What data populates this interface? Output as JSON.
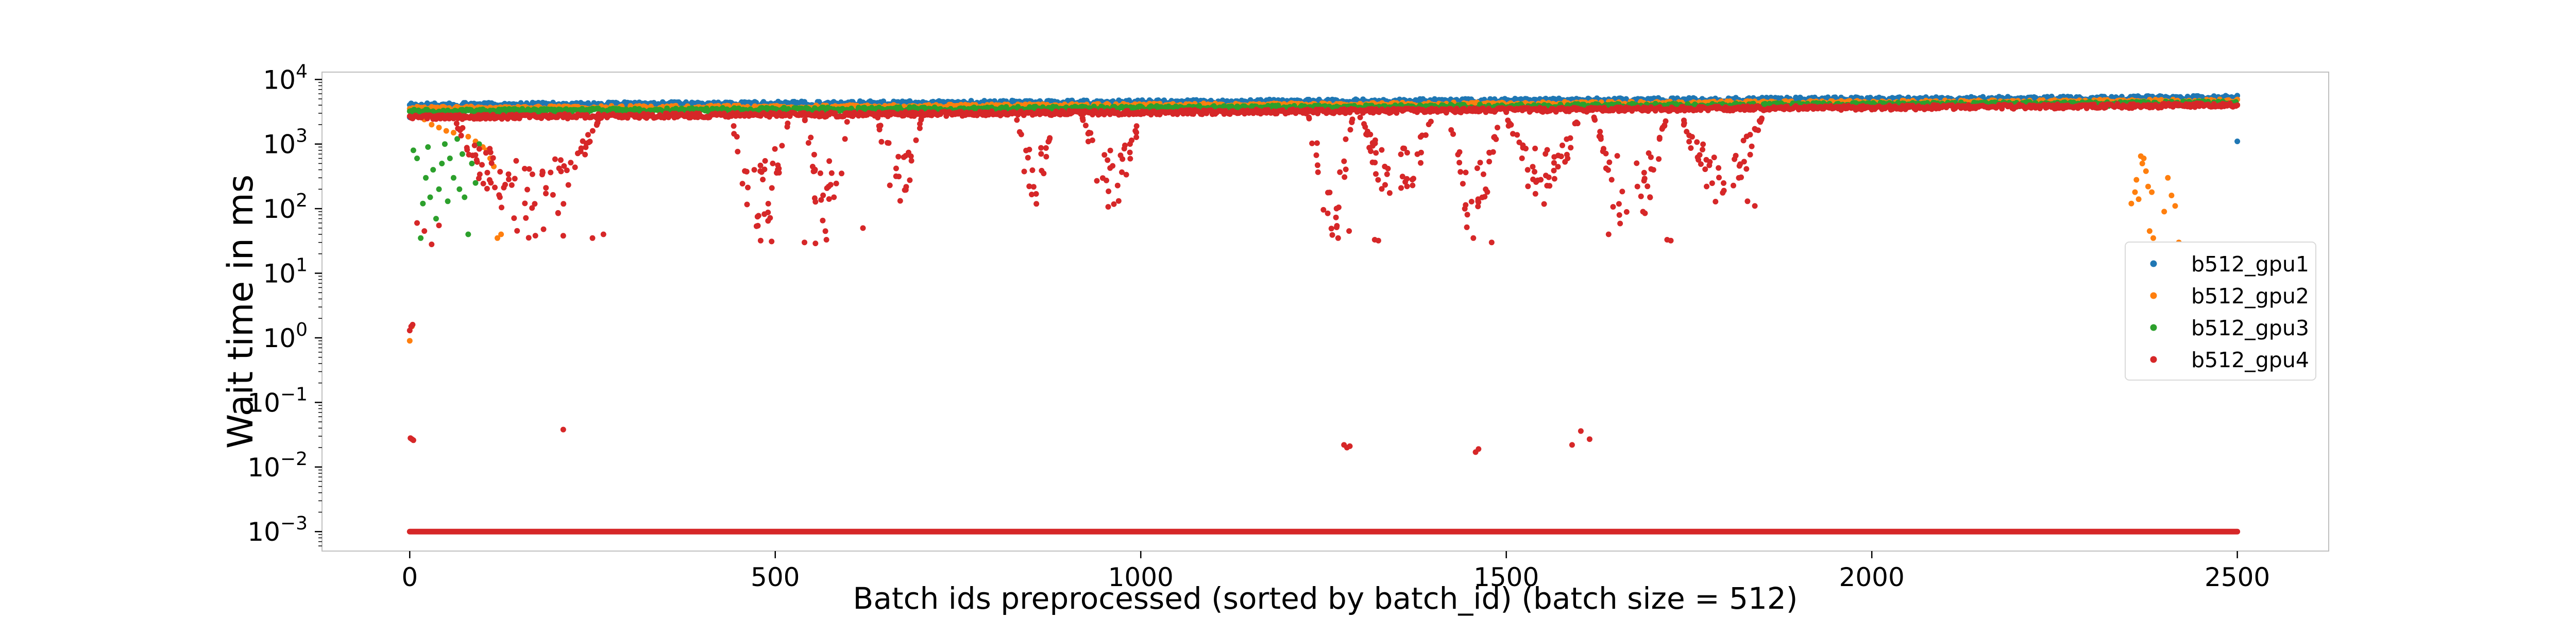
{
  "chart_data": {
    "type": "scatter",
    "xlabel": "Batch ids preprocessed (sorted by batch_id) (batch size = 512)",
    "ylabel": "Wait time in ms",
    "yscale": "log",
    "xlim": [
      -120,
      2625
    ],
    "ylim": [
      0.0005,
      13000
    ],
    "x_ticks": [
      0,
      500,
      1000,
      1500,
      2000,
      2500
    ],
    "x_tick_labels": [
      "0",
      "500",
      "1000",
      "1500",
      "2000",
      "2500"
    ],
    "y_ticks": [
      0.001,
      0.01,
      0.1,
      1,
      10,
      100,
      1000,
      10000
    ],
    "y_tick_labels": [
      {
        "base": "10",
        "exp": "−3"
      },
      {
        "base": "10",
        "exp": "−2"
      },
      {
        "base": "10",
        "exp": "−1"
      },
      {
        "base": "10",
        "exp": "0"
      },
      {
        "base": "10",
        "exp": "1"
      },
      {
        "base": "10",
        "exp": "2"
      },
      {
        "base": "10",
        "exp": "3"
      },
      {
        "base": "10",
        "exp": "4"
      }
    ],
    "grid": false,
    "legend_position": "center-right",
    "series": [
      {
        "name": "b512_gpu1",
        "color": "#1f77b4",
        "baseline": {
          "x_start": 0,
          "x_end": 2500,
          "y_start": 4000,
          "y_end": 5200
        },
        "points": [
          [
            0,
            2600
          ],
          [
            2,
            3300
          ],
          [
            2500,
            1100
          ]
        ]
      },
      {
        "name": "b512_gpu2",
        "color": "#ff7f0e",
        "baseline": {
          "x_start": 0,
          "x_end": 2500,
          "y_start": 3500,
          "y_end": 4600
        },
        "points": [
          [
            0,
            0.9
          ],
          [
            3,
            1.5
          ],
          [
            10,
            3000
          ],
          [
            20,
            2400
          ],
          [
            30,
            2000
          ],
          [
            40,
            1800
          ],
          [
            50,
            1600
          ],
          [
            60,
            1500
          ],
          [
            70,
            1700
          ],
          [
            80,
            1300
          ],
          [
            90,
            1100
          ],
          [
            100,
            900
          ],
          [
            105,
            800
          ],
          [
            110,
            600
          ],
          [
            115,
            450
          ],
          [
            120,
            35
          ],
          [
            125,
            40
          ],
          [
            2355,
            120
          ],
          [
            2360,
            180
          ],
          [
            2362,
            280
          ],
          [
            2365,
            140
          ],
          [
            2368,
            650
          ],
          [
            2370,
            500
          ],
          [
            2372,
            600
          ],
          [
            2375,
            380
          ],
          [
            2378,
            220
          ],
          [
            2380,
            45
          ],
          [
            2383,
            180
          ],
          [
            2385,
            35
          ],
          [
            2400,
            90
          ],
          [
            2405,
            300
          ],
          [
            2410,
            160
          ],
          [
            2415,
            110
          ],
          [
            2420,
            30
          ]
        ]
      },
      {
        "name": "b512_gpu3",
        "color": "#2ca02c",
        "baseline": {
          "x_start": 0,
          "x_end": 2500,
          "y_start": 3200,
          "y_end": 4300
        },
        "points": [
          [
            5,
            800
          ],
          [
            10,
            600
          ],
          [
            15,
            35
          ],
          [
            18,
            120
          ],
          [
            22,
            300
          ],
          [
            25,
            900
          ],
          [
            28,
            150
          ],
          [
            32,
            400
          ],
          [
            36,
            70
          ],
          [
            40,
            200
          ],
          [
            44,
            500
          ],
          [
            48,
            1000
          ],
          [
            52,
            130
          ],
          [
            55,
            600
          ],
          [
            60,
            300
          ],
          [
            65,
            1200
          ],
          [
            68,
            200
          ],
          [
            72,
            700
          ],
          [
            75,
            150
          ],
          [
            80,
            40
          ],
          [
            85,
            500
          ],
          [
            90,
            250
          ],
          [
            95,
            1000
          ]
        ]
      },
      {
        "name": "b512_gpu4",
        "color": "#d62728",
        "baseline": {
          "x_start": 0,
          "x_end": 2500,
          "y_start": 2600,
          "y_end": 4000
        },
        "floor": {
          "x_start": 0,
          "x_end": 2500,
          "y": 0.001
        },
        "dip_clusters": [
          {
            "x_start": 60,
            "x_end": 260,
            "y_low": 30
          },
          {
            "x_start": 440,
            "x_end": 520,
            "y_low": 30
          },
          {
            "x_start": 540,
            "x_end": 600,
            "y_low": 30
          },
          {
            "x_start": 640,
            "x_end": 700,
            "y_low": 80
          },
          {
            "x_start": 830,
            "x_end": 880,
            "y_low": 100
          },
          {
            "x_start": 920,
            "x_end": 1000,
            "y_low": 100
          },
          {
            "x_start": 1230,
            "x_end": 1290,
            "y_low": 30
          },
          {
            "x_start": 1300,
            "x_end": 1400,
            "y_low": 100
          },
          {
            "x_start": 1420,
            "x_end": 1490,
            "y_low": 30
          },
          {
            "x_start": 1500,
            "x_end": 1600,
            "y_low": 100
          },
          {
            "x_start": 1620,
            "x_end": 1720,
            "y_low": 30
          },
          {
            "x_start": 1740,
            "x_end": 1850,
            "y_low": 100
          }
        ],
        "points": [
          [
            0,
            1.3
          ],
          [
            2,
            1.5
          ],
          [
            4,
            1.6
          ],
          [
            1,
            0.028
          ],
          [
            3,
            0.027
          ],
          [
            5,
            0.026
          ],
          [
            210,
            0.038
          ],
          [
            1278,
            0.022
          ],
          [
            1282,
            0.02
          ],
          [
            1286,
            0.021
          ],
          [
            1458,
            0.017
          ],
          [
            1462,
            0.019
          ],
          [
            1590,
            0.022
          ],
          [
            1602,
            0.036
          ],
          [
            1614,
            0.027
          ],
          [
            10,
            60
          ],
          [
            20,
            45
          ],
          [
            30,
            28
          ],
          [
            40,
            55
          ],
          [
            210,
            38
          ],
          [
            250,
            35
          ],
          [
            265,
            40
          ],
          [
            480,
            32
          ],
          [
            495,
            31
          ],
          [
            540,
            30
          ],
          [
            555,
            29
          ],
          [
            570,
            33
          ],
          [
            620,
            50
          ],
          [
            1270,
            35
          ],
          [
            1285,
            45
          ],
          [
            1320,
            33
          ],
          [
            1325,
            32
          ],
          [
            1455,
            35
          ],
          [
            1480,
            30
          ],
          [
            1640,
            40
          ],
          [
            1720,
            33
          ],
          [
            1725,
            32
          ],
          [
            1830,
            130
          ],
          [
            1840,
            110
          ]
        ]
      }
    ]
  }
}
